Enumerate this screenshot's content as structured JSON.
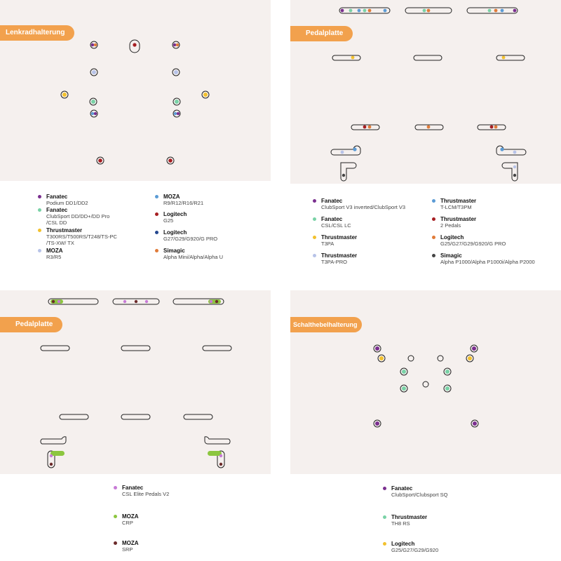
{
  "colors": {
    "panel_bg": "#f5f0ee",
    "tag_bg": "#f2a14d",
    "fanatec_purple": "#7a2f8f",
    "fanatec_green": "#79d2a6",
    "thrustmaster_yellow": "#f2c12e",
    "moza_lavender": "#b7c3e8",
    "moza_blue": "#5b9bd5",
    "logitech_red": "#a61e22",
    "logitech_navy": "#24478f",
    "simagic_orange": "#e07b39",
    "simagic_dark": "#444444",
    "fanatec_pink": "#c77ad6",
    "moza_lime": "#8cc63f",
    "moza_darkred": "#6b2a2a"
  },
  "panels": {
    "wheel": {
      "tag": "Lenkradhalterung",
      "legend": [
        {
          "brand": "Fanatec",
          "models": "Podium DD1/DD2",
          "color": "#7a2f8f"
        },
        {
          "brand": "Fanatec",
          "models": "ClubSport DD/DD+/DD Pro\n/CSL DD",
          "color": "#79d2a6"
        },
        {
          "brand": "Thrustmaster",
          "models": "T300RS/T500RS/T248/TS-PC\n/TS-XW/ TX",
          "color": "#f2c12e"
        },
        {
          "brand": "MOZA",
          "models": "R3/R5",
          "color": "#b7c3e8"
        },
        {
          "brand": "MOZA",
          "models": "R9/R12/R16/R21",
          "color": "#5b9bd5"
        },
        {
          "brand": "Logitech",
          "models": "G25",
          "color": "#a61e22"
        },
        {
          "brand": "Logitech",
          "models": "G27/G29/G920/G PRO",
          "color": "#24478f"
        },
        {
          "brand": "Simagic",
          "models": "Alpha Mini/Alpha/Alpha U",
          "color": "#e07b39"
        }
      ]
    },
    "pedal1": {
      "tag": "Pedalplatte",
      "legend": [
        {
          "brand": "Fanatec",
          "models": "ClubSport V3 inverted/ClubSport V3",
          "color": "#7a2f8f"
        },
        {
          "brand": "Fanatec",
          "models": "CSL/CSL LC",
          "color": "#79d2a6"
        },
        {
          "brand": "Thrustmaster",
          "models": "T3PA",
          "color": "#f2c12e"
        },
        {
          "brand": "Thrustmaster",
          "models": "T3PA-PRO",
          "color": "#b7c3e8"
        },
        {
          "brand": "Thrustmaster",
          "models": "T-LCM/T3PM",
          "color": "#5b9bd5"
        },
        {
          "brand": "Thrustmaster",
          "models": "2 Pedals",
          "color": "#a61e22"
        },
        {
          "brand": "Logitech",
          "models": "G25/G27/G29/G920/G PRO",
          "color": "#e07b39"
        },
        {
          "brand": "Simagic",
          "models": "Alpha P1000/Alpha P1000i/Alpha P2000",
          "color": "#444444"
        }
      ]
    },
    "pedal2": {
      "tag": "Pedalplatte",
      "legend": [
        {
          "brand": "Fanatec",
          "models": "CSL Elite Pedals V2",
          "color": "#c77ad6"
        },
        {
          "brand": "MOZA",
          "models": "CRP",
          "color": "#8cc63f"
        },
        {
          "brand": "MOZA",
          "models": "SRP",
          "color": "#6b2a2a"
        }
      ]
    },
    "shifter": {
      "tag": "Schalthebelhalterung",
      "legend": [
        {
          "brand": "Fanatec",
          "models": "ClubSport/Clubsport SQ",
          "color": "#7a2f8f"
        },
        {
          "brand": "Thrustmaster",
          "models": "TH8 RS",
          "color": "#79d2a6"
        },
        {
          "brand": "Logitech",
          "models": "G25/G27/G29/G920",
          "color": "#f2c12e"
        }
      ]
    }
  }
}
